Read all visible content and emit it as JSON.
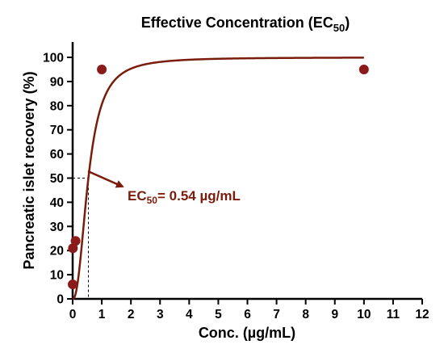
{
  "chart_data": {
    "type": "scatter",
    "title": {
      "main": "Effective Concentration (EC",
      "sub": "50",
      "close": ")"
    },
    "xlabel": "Conc. (µg/mL)",
    "ylabel": "Pancreatic islet recovery (%)",
    "xlim": [
      0,
      12
    ],
    "ylim": [
      0,
      105
    ],
    "xticks": [
      "0",
      "1",
      "2",
      "3",
      "4",
      "5",
      "6",
      "7",
      "8",
      "9",
      "10",
      "11",
      "12"
    ],
    "yticks": [
      "0",
      "10",
      "20",
      "30",
      "40",
      "50",
      "60",
      "70",
      "80",
      "90",
      "100"
    ],
    "grid": false,
    "series": [
      {
        "points": [
          {
            "x": 0,
            "y": 6
          },
          {
            "x": 0.01,
            "y": 21
          },
          {
            "x": 0.1,
            "y": 24
          },
          {
            "x": 1,
            "y": 95
          },
          {
            "x": 10,
            "y": 95
          }
        ],
        "color": "#8b1a1a"
      }
    ],
    "fit_curve": {
      "bottom": 0,
      "top": 100,
      "ec50": 0.54,
      "hill_slope": 2.3,
      "x_range": [
        0,
        10
      ],
      "color": "#7a1c0c"
    },
    "reference": {
      "x": 0.54,
      "y": 50
    },
    "annotation": {
      "prefix": "EC",
      "sub": "50",
      "suffix": "= 0.54 µg/mL",
      "color": "#7a1c0c"
    }
  }
}
